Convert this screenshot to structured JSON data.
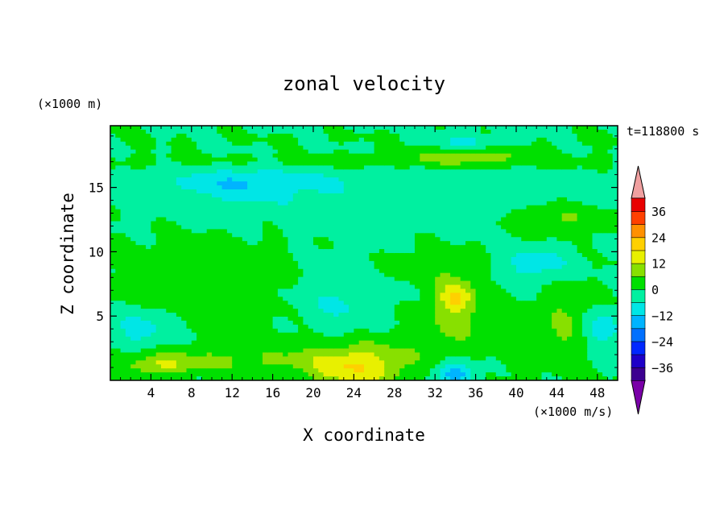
{
  "chart_data": {
    "type": "heatmap",
    "title": "zonal velocity",
    "xlabel": "X coordinate",
    "ylabel": "Z coordinate",
    "x_unit": "(×1000 m/s)",
    "y_unit": "(×1000 m)",
    "time_label": "t=118800 s",
    "xlim": [
      0,
      50
    ],
    "ylim": [
      0,
      19.8
    ],
    "x_ticks": [
      "4",
      "8",
      "12",
      "16",
      "20",
      "24",
      "28",
      "32",
      "36",
      "40",
      "44",
      "48"
    ],
    "y_ticks": [
      "5",
      "10",
      "15"
    ],
    "colorbar": {
      "ticks": [
        "36",
        "24",
        "12",
        "0",
        "−12",
        "−24",
        "−36"
      ],
      "levels": [
        -42,
        -36,
        -30,
        -24,
        -18,
        -12,
        -6,
        0,
        6,
        12,
        18,
        24,
        30,
        36,
        42
      ],
      "colors": [
        "#7a00a8",
        "#3c0090",
        "#1e00c8",
        "#0028ff",
        "#0070ff",
        "#00b4ff",
        "#00e6e6",
        "#00f0a0",
        "#00e000",
        "#88e000",
        "#e8f000",
        "#ffd000",
        "#ff9000",
        "#ff4000",
        "#e80000",
        "#f0a0a0"
      ]
    },
    "features": [
      {
        "x": 25,
        "z": 15,
        "rx": 25,
        "rz": 5,
        "value": -5
      },
      {
        "x": 25,
        "z": 10,
        "rx": 25,
        "rz": 3,
        "value": 2
      },
      {
        "x": 24,
        "z": 1,
        "rx": 4.5,
        "rz": 1.6,
        "value": 16
      },
      {
        "x": 24,
        "z": 2.5,
        "rx": 8,
        "rz": 2.5,
        "value": 6
      },
      {
        "x": 34,
        "z": 0.5,
        "rx": 2,
        "rz": 1,
        "value": -16
      },
      {
        "x": 34,
        "z": 5.5,
        "rx": 3,
        "rz": 3,
        "value": 8
      },
      {
        "x": 34,
        "z": 6.5,
        "rx": 1.5,
        "rz": 1.2,
        "value": 12
      },
      {
        "x": 45,
        "z": 4.5,
        "rx": 2.5,
        "rz": 3,
        "value": 7
      },
      {
        "x": 48.5,
        "z": 4,
        "rx": 2,
        "rz": 1.5,
        "value": -10
      },
      {
        "x": 3,
        "z": 4,
        "rx": 3,
        "rz": 1.5,
        "value": -9
      },
      {
        "x": 10,
        "z": 8,
        "rx": 10,
        "rz": 4,
        "value": 3
      },
      {
        "x": 23,
        "z": 5.5,
        "rx": 5,
        "rz": 4,
        "value": -8
      },
      {
        "x": 10,
        "z": 1.5,
        "rx": 10,
        "rz": 1,
        "value": 6
      },
      {
        "x": 5,
        "z": 1.2,
        "rx": 3,
        "rz": 0.8,
        "value": 9
      },
      {
        "x": 13,
        "z": 15.3,
        "rx": 6,
        "rz": 1.2,
        "value": -9
      },
      {
        "x": 25,
        "z": 17,
        "rx": 25,
        "rz": 0.8,
        "value": 6
      },
      {
        "x": 35,
        "z": 17.5,
        "rx": 6,
        "rz": 0.7,
        "value": 9
      },
      {
        "x": 25,
        "z": 18.7,
        "rx": 25,
        "rz": 1,
        "value": 3
      },
      {
        "x": 35,
        "z": 18.5,
        "rx": 4,
        "rz": 0.6,
        "value": -8
      },
      {
        "x": 44,
        "z": 12.5,
        "rx": 5,
        "rz": 1.2,
        "value": 8
      },
      {
        "x": 42,
        "z": 9,
        "rx": 4,
        "rz": 1.5,
        "value": -9
      },
      {
        "x": 40,
        "z": 3,
        "rx": 2,
        "rz": 2.5,
        "value": 3
      },
      {
        "x": 30,
        "z": 9,
        "rx": 4,
        "rz": 1,
        "value": 3
      }
    ]
  }
}
